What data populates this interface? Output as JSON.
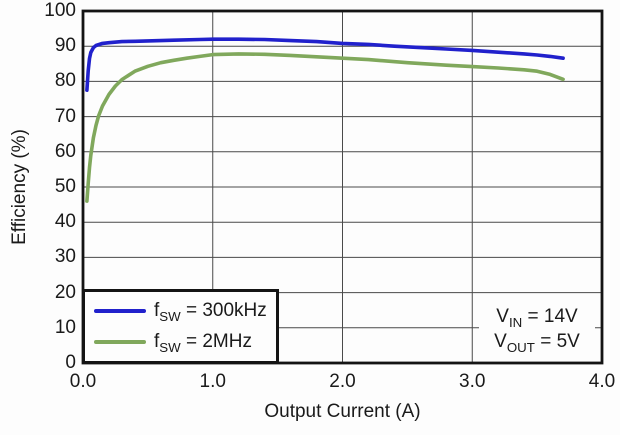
{
  "figure": {
    "background": "#fdfdfd",
    "text_color": "#1a1a1a",
    "grid_color": "#4a4a4a",
    "frame_color": "#141414"
  },
  "axis_titles": {
    "y": "Efficiency (%)",
    "x": "Output Current (A)"
  },
  "legend": {
    "entries": [
      {
        "prefix": "f",
        "sub": "SW",
        "rest": " = 300kHz"
      },
      {
        "prefix": "f",
        "sub": "SW",
        "rest": " = 2MHz"
      }
    ]
  },
  "annotation": {
    "lines": [
      {
        "prefix": "V",
        "sub": "IN",
        "rest": " = 14V"
      },
      {
        "prefix": "V",
        "sub": "OUT",
        "rest": " = 5V"
      }
    ]
  },
  "chart_data": {
    "type": "line",
    "title": "",
    "xlabel": "Output Current (A)",
    "ylabel": "Efficiency (%)",
    "xlim": [
      0,
      4
    ],
    "ylim": [
      0,
      100
    ],
    "grid": "on",
    "xgrid": [
      1,
      2,
      3
    ],
    "ygrid": [
      10,
      20,
      30,
      40,
      50,
      60,
      70,
      80,
      90
    ],
    "xticks": {
      "values": [
        0,
        1,
        2,
        3,
        4
      ],
      "labels": [
        "0.0",
        "1.0",
        "2.0",
        "3.0",
        "4.0"
      ]
    },
    "yticks": {
      "values": [
        0,
        10,
        20,
        30,
        40,
        50,
        60,
        70,
        80,
        90,
        100
      ],
      "labels": [
        "0",
        "10",
        "20",
        "30",
        "40",
        "50",
        "60",
        "70",
        "80",
        "90",
        "100"
      ]
    },
    "legend_position": "lower-left",
    "annotations": [
      "VIN = 14V",
      "VOUT = 5V"
    ],
    "series": [
      {
        "name": "fSW = 300kHz",
        "color": "#2121cc",
        "points": [
          [
            0.03,
            77.5
          ],
          [
            0.04,
            83.0
          ],
          [
            0.05,
            86.5
          ],
          [
            0.06,
            88.2
          ],
          [
            0.08,
            89.6
          ],
          [
            0.1,
            90.2
          ],
          [
            0.15,
            90.8
          ],
          [
            0.2,
            91.0
          ],
          [
            0.3,
            91.3
          ],
          [
            0.4,
            91.4
          ],
          [
            0.5,
            91.5
          ],
          [
            0.7,
            91.7
          ],
          [
            0.9,
            91.9
          ],
          [
            1.0,
            92.0
          ],
          [
            1.2,
            92.0
          ],
          [
            1.4,
            91.9
          ],
          [
            1.6,
            91.6
          ],
          [
            1.8,
            91.3
          ],
          [
            2.0,
            90.8
          ],
          [
            2.2,
            90.5
          ],
          [
            2.4,
            90.0
          ],
          [
            2.6,
            89.6
          ],
          [
            2.8,
            89.2
          ],
          [
            3.0,
            88.8
          ],
          [
            3.2,
            88.3
          ],
          [
            3.4,
            87.8
          ],
          [
            3.5,
            87.5
          ],
          [
            3.6,
            87.1
          ],
          [
            3.7,
            86.6
          ]
        ]
      },
      {
        "name": "fSW = 2MHz",
        "color": "#80a85c",
        "points": [
          [
            0.03,
            46.0
          ],
          [
            0.04,
            51.0
          ],
          [
            0.05,
            55.5
          ],
          [
            0.06,
            59.0
          ],
          [
            0.08,
            64.0
          ],
          [
            0.1,
            67.5
          ],
          [
            0.12,
            70.2
          ],
          [
            0.15,
            73.0
          ],
          [
            0.2,
            76.3
          ],
          [
            0.25,
            78.7
          ],
          [
            0.3,
            80.5
          ],
          [
            0.4,
            82.9
          ],
          [
            0.5,
            84.3
          ],
          [
            0.6,
            85.3
          ],
          [
            0.7,
            86.0
          ],
          [
            0.8,
            86.6
          ],
          [
            0.9,
            87.1
          ],
          [
            1.0,
            87.6
          ],
          [
            1.2,
            87.8
          ],
          [
            1.4,
            87.7
          ],
          [
            1.6,
            87.4
          ],
          [
            1.8,
            87.0
          ],
          [
            2.0,
            86.6
          ],
          [
            2.2,
            86.2
          ],
          [
            2.5,
            85.3
          ],
          [
            2.8,
            84.6
          ],
          [
            3.0,
            84.2
          ],
          [
            3.2,
            83.8
          ],
          [
            3.4,
            83.3
          ],
          [
            3.5,
            82.9
          ],
          [
            3.6,
            82.0
          ],
          [
            3.7,
            80.6
          ]
        ]
      }
    ]
  }
}
